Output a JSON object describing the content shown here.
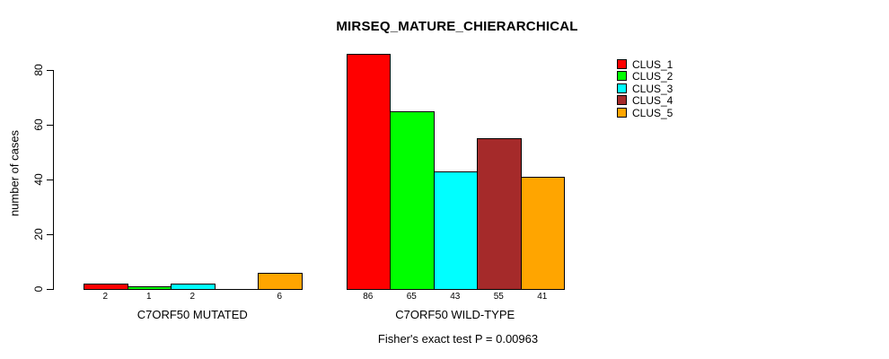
{
  "chart_data": {
    "type": "bar",
    "title": "MIRSEQ_MATURE_CHIERARCHICAL",
    "ylabel": "number of cases",
    "xlabel": "",
    "ylim": [
      0,
      80
    ],
    "yticks": [
      0,
      20,
      40,
      60,
      80
    ],
    "grid": false,
    "legend_position": "right",
    "background": "#FFFFFF",
    "text_color": "#000000",
    "categories": [
      "C7ORF50 MUTATED",
      "C7ORF50 WILD-TYPE"
    ],
    "series": [
      {
        "name": "CLUS_1",
        "color": "#FF0000",
        "values": [
          2,
          86
        ]
      },
      {
        "name": "CLUS_2",
        "color": "#00FF00",
        "values": [
          1,
          65
        ]
      },
      {
        "name": "CLUS_3",
        "color": "#00FFFF",
        "values": [
          2,
          43
        ]
      },
      {
        "name": "CLUS_4",
        "color": "#A52A2A",
        "values": [
          0,
          55
        ]
      },
      {
        "name": "CLUS_5",
        "color": "#FFA500",
        "values": [
          6,
          41
        ]
      }
    ],
    "bar_value_labels": [
      [
        "2",
        "1",
        "2",
        "",
        "6"
      ],
      [
        "86",
        "65",
        "43",
        "55",
        "41"
      ]
    ],
    "footnote": "Fisher's exact test P = 0.00963"
  }
}
